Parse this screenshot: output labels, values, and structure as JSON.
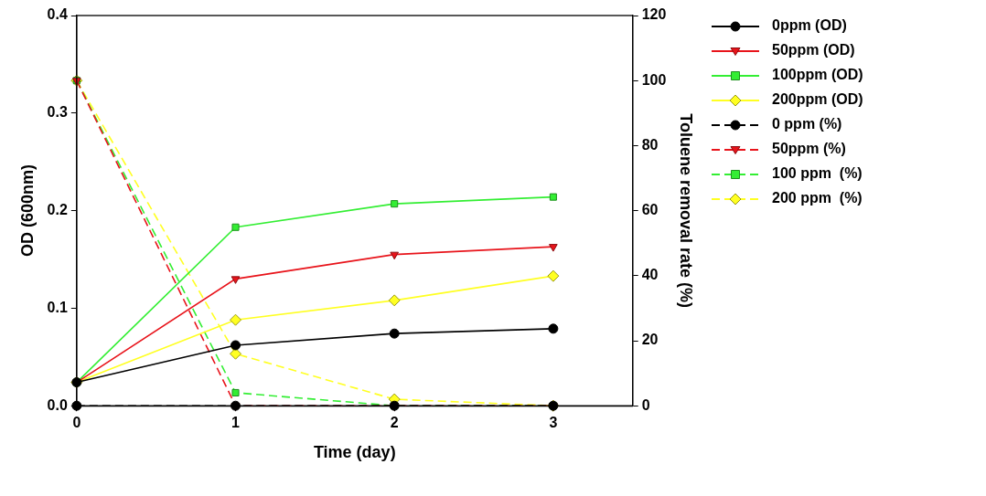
{
  "chart_data": {
    "type": "line",
    "x_label": "Time (day)",
    "y_label": "OD (600nm)",
    "y2_label": "Toluene removal rate (%)",
    "x": [
      0,
      1,
      2,
      3
    ],
    "xlim": [
      0,
      3.5
    ],
    "xticks": [
      0,
      1,
      2,
      3
    ],
    "ylim": [
      0,
      0.4
    ],
    "yticks": [
      {
        "value": 0,
        "label": "0.0"
      },
      0.1,
      0.2,
      0.3,
      0.4
    ],
    "y2lim": [
      0,
      120
    ],
    "y2ticks": [
      0,
      20,
      40,
      60,
      80,
      100,
      120
    ],
    "grid": false,
    "legend": "right",
    "series": [
      {
        "name": "0ppm (OD)",
        "color": "#000000",
        "values": [
          0.024,
          0.062,
          0.074,
          0.079
        ],
        "axis": "y",
        "marker": "circle",
        "line_style": "solid"
      },
      {
        "name": "50ppm (OD)",
        "color": "#e8141b",
        "values": [
          0.024,
          0.13,
          0.155,
          0.163
        ],
        "axis": "y",
        "marker": "triangle-down",
        "line_style": "solid"
      },
      {
        "name": "100ppm (OD)",
        "color": "#33ee33",
        "values": [
          0.024,
          0.183,
          0.207,
          0.214
        ],
        "axis": "y",
        "marker": "square",
        "line_style": "solid"
      },
      {
        "name": "200ppm (OD)",
        "color": "#ffff22",
        "values": [
          0.024,
          0.088,
          0.108,
          0.133
        ],
        "axis": "y",
        "marker": "diamond",
        "line_style": "solid"
      },
      {
        "name": "0 ppm (%)",
        "color": "#000000",
        "values": [
          0,
          0,
          0,
          0
        ],
        "axis": "y2",
        "marker": "circle",
        "line_style": "dashed"
      },
      {
        "name": "50ppm (%)",
        "color": "#e8141b",
        "values": [
          100,
          0,
          0,
          0
        ],
        "axis": "y2",
        "marker": "triangle-down",
        "line_style": "dashed"
      },
      {
        "name": "100 ppm  (%)",
        "color": "#33ee33",
        "values": [
          100,
          4,
          0,
          0
        ],
        "axis": "y2",
        "marker": "square",
        "line_style": "dashed"
      },
      {
        "name": "200 ppm  (%)",
        "color": "#ffff22",
        "values": [
          100,
          16,
          2,
          0
        ],
        "axis": "y2",
        "marker": "diamond",
        "line_style": "dashed"
      }
    ]
  }
}
